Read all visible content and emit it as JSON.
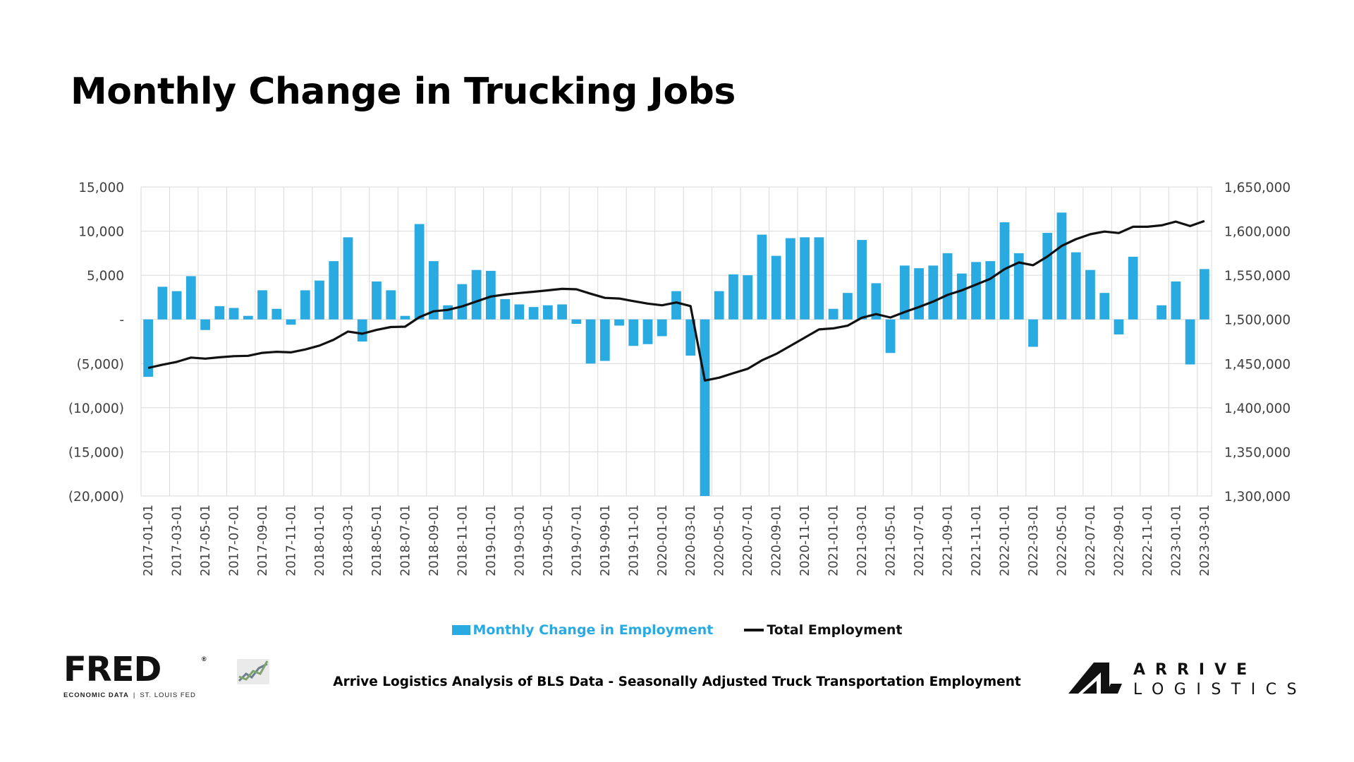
{
  "title": "Monthly Change in Trucking Jobs",
  "caption": "Arrive Logistics Analysis of BLS Data - Seasonally Adjusted Truck Transportation Employment",
  "logos": {
    "fred": {
      "word": "FRED",
      "registered": "®",
      "sub_a": "ECONOMIC DATA",
      "sep": "|",
      "sub_b": "ST. LOUIS FED",
      "icon": "chart-spark-icon"
    },
    "arrive": {
      "line1": "ARRIVE",
      "line2": "LOGISTICS",
      "icon": "arrive-mark-icon"
    }
  },
  "colors": {
    "bar": "#29abe2",
    "line": "#111111",
    "grid": "#d9d9d9",
    "axis_text": "#404040"
  },
  "chart_data": {
    "type": "bar",
    "title": "",
    "xlabel": "",
    "ylabel": "",
    "ylim": [
      -20000,
      15000
    ],
    "y2lim": [
      1300000,
      1650000
    ],
    "grid": true,
    "legend_position": "bottom",
    "left_ticks": [
      {
        "value": 15000,
        "label": "15,000"
      },
      {
        "value": 10000,
        "label": "10,000"
      },
      {
        "value": 5000,
        "label": "5,000"
      },
      {
        "value": 0,
        "label": "-"
      },
      {
        "value": -5000,
        "label": "(5,000)"
      },
      {
        "value": -10000,
        "label": "(10,000)"
      },
      {
        "value": -15000,
        "label": "(15,000)"
      },
      {
        "value": -20000,
        "label": "(20,000)"
      }
    ],
    "right_ticks": [
      {
        "value": 1650000,
        "label": "1,650,000"
      },
      {
        "value": 1600000,
        "label": "1,600,000"
      },
      {
        "value": 1550000,
        "label": "1,550,000"
      },
      {
        "value": 1500000,
        "label": "1,500,000"
      },
      {
        "value": 1450000,
        "label": "1,450,000"
      },
      {
        "value": 1400000,
        "label": "1,400,000"
      },
      {
        "value": 1350000,
        "label": "1,350,000"
      },
      {
        "value": 1300000,
        "label": "1,300,000"
      }
    ],
    "categories": [
      "2017-01-01",
      "2017-02-01",
      "2017-03-01",
      "2017-04-01",
      "2017-05-01",
      "2017-06-01",
      "2017-07-01",
      "2017-08-01",
      "2017-09-01",
      "2017-10-01",
      "2017-11-01",
      "2017-12-01",
      "2018-01-01",
      "2018-02-01",
      "2018-03-01",
      "2018-04-01",
      "2018-05-01",
      "2018-06-01",
      "2018-07-01",
      "2018-08-01",
      "2018-09-01",
      "2018-10-01",
      "2018-11-01",
      "2018-12-01",
      "2019-01-01",
      "2019-02-01",
      "2019-03-01",
      "2019-04-01",
      "2019-05-01",
      "2019-06-01",
      "2019-07-01",
      "2019-08-01",
      "2019-09-01",
      "2019-10-01",
      "2019-11-01",
      "2019-12-01",
      "2020-01-01",
      "2020-02-01",
      "2020-03-01",
      "2020-04-01",
      "2020-05-01",
      "2020-06-01",
      "2020-07-01",
      "2020-08-01",
      "2020-09-01",
      "2020-10-01",
      "2020-11-01",
      "2020-12-01",
      "2021-01-01",
      "2021-02-01",
      "2021-03-01",
      "2021-04-01",
      "2021-05-01",
      "2021-06-01",
      "2021-07-01",
      "2021-08-01",
      "2021-09-01",
      "2021-10-01",
      "2021-11-01",
      "2021-12-01",
      "2022-01-01",
      "2022-02-01",
      "2022-03-01",
      "2022-04-01",
      "2022-05-01",
      "2022-06-01",
      "2022-07-01",
      "2022-08-01",
      "2022-09-01",
      "2022-10-01",
      "2022-11-01",
      "2022-12-01",
      "2023-01-01",
      "2023-02-01",
      "2023-03-01"
    ],
    "x_tick_labels": [
      "2017-01-01",
      "2017-03-01",
      "2017-05-01",
      "2017-07-01",
      "2017-09-01",
      "2017-11-01",
      "2018-01-01",
      "2018-03-01",
      "2018-05-01",
      "2018-07-01",
      "2018-09-01",
      "2018-11-01",
      "2019-01-01",
      "2019-03-01",
      "2019-05-01",
      "2019-07-01",
      "2019-09-01",
      "2019-11-01",
      "2020-01-01",
      "2020-03-01",
      "2020-05-01",
      "2020-07-01",
      "2020-09-01",
      "2020-11-01",
      "2021-01-01",
      "2021-03-01",
      "2021-05-01",
      "2021-07-01",
      "2021-09-01",
      "2021-11-01",
      "2022-01-01",
      "2022-03-01",
      "2022-05-01",
      "2022-07-01",
      "2022-09-01",
      "2022-11-01",
      "2023-01-01",
      "2023-03-01"
    ],
    "series": [
      {
        "name": "Monthly Change in Employment",
        "type": "bar",
        "axis": "left",
        "values": [
          -6500,
          3700,
          3200,
          4900,
          -1200,
          1500,
          1300,
          400,
          3300,
          1200,
          -600,
          3300,
          4400,
          6600,
          9300,
          -2500,
          4300,
          3300,
          400,
          10800,
          6600,
          1600,
          4000,
          5600,
          5500,
          2300,
          1700,
          1400,
          1600,
          1700,
          -500,
          -5000,
          -4700,
          -700,
          -3000,
          -2800,
          -1900,
          3200,
          -4100,
          -20000,
          3200,
          5100,
          5000,
          9600,
          7200,
          9200,
          9300,
          9300,
          1200,
          3000,
          9000,
          4100,
          -3800,
          6100,
          5800,
          6100,
          7500,
          5200,
          6500,
          6600,
          11000,
          7500,
          -3100,
          9800,
          12100,
          7600,
          5600,
          3000,
          -1700,
          7100,
          0,
          1600,
          4300,
          -5100,
          5700
        ]
      },
      {
        "name": "Total Employment",
        "type": "line",
        "axis": "right",
        "values": [
          1445000,
          1448700,
          1451900,
          1456800,
          1455600,
          1457100,
          1458400,
          1458800,
          1462100,
          1463300,
          1462700,
          1466000,
          1470400,
          1477000,
          1486300,
          1483800,
          1488100,
          1491400,
          1491800,
          1502600,
          1509200,
          1510800,
          1514800,
          1520400,
          1525900,
          1528200,
          1529900,
          1531300,
          1532900,
          1534600,
          1534100,
          1529100,
          1524400,
          1523700,
          1520700,
          1517900,
          1516000,
          1519200,
          1515100,
          1430800,
          1434000,
          1439100,
          1444100,
          1453700,
          1460900,
          1470100,
          1479400,
          1488700,
          1489900,
          1492900,
          1501900,
          1506000,
          1502200,
          1508300,
          1514100,
          1520200,
          1527700,
          1532900,
          1539400,
          1546000,
          1557000,
          1564500,
          1561400,
          1571200,
          1583300,
          1590900,
          1596500,
          1599500,
          1597800,
          1604900,
          1604900,
          1606500,
          1610800,
          1605700,
          1611400
        ]
      }
    ]
  }
}
